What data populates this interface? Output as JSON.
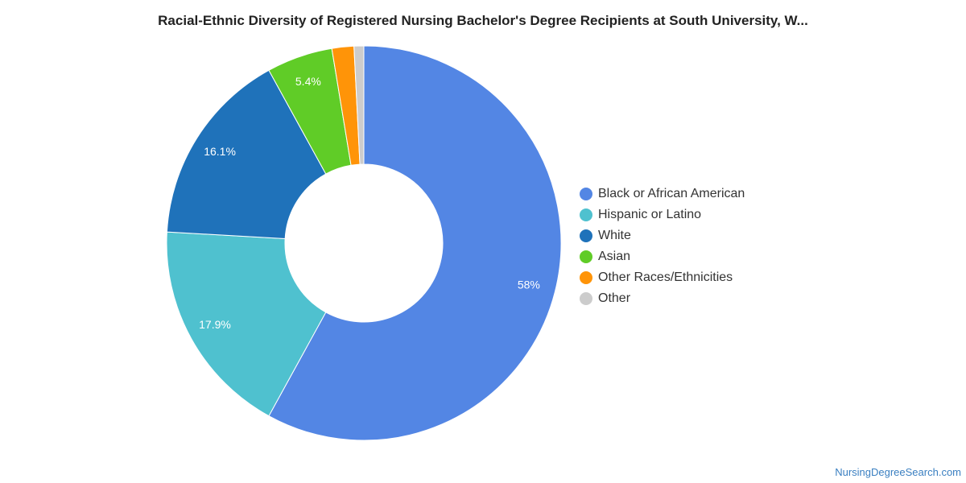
{
  "chart_data": {
    "type": "pie",
    "subtype": "donut",
    "title": "Racial-Ethnic Diversity of Registered Nursing Bachelor's Degree Recipients at South University, W...",
    "slices": [
      {
        "name": "Black or African American",
        "value": 58,
        "label": "58%",
        "color": "#5386e4"
      },
      {
        "name": "Hispanic or Latino",
        "value": 17.9,
        "label": "17.9%",
        "color": "#4fc1cf"
      },
      {
        "name": "White",
        "value": 16.1,
        "label": "16.1%",
        "color": "#1f72ba"
      },
      {
        "name": "Asian",
        "value": 5.4,
        "label": "5.4%",
        "color": "#60cc27"
      },
      {
        "name": "Other Races/Ethnicities",
        "value": 1.8,
        "label": "",
        "color": "#ff9408"
      },
      {
        "name": "Other",
        "value": 0.8,
        "label": "",
        "color": "#cccccc"
      }
    ],
    "legend_position": "right"
  },
  "watermark": "NursingDegreeSearch.com"
}
